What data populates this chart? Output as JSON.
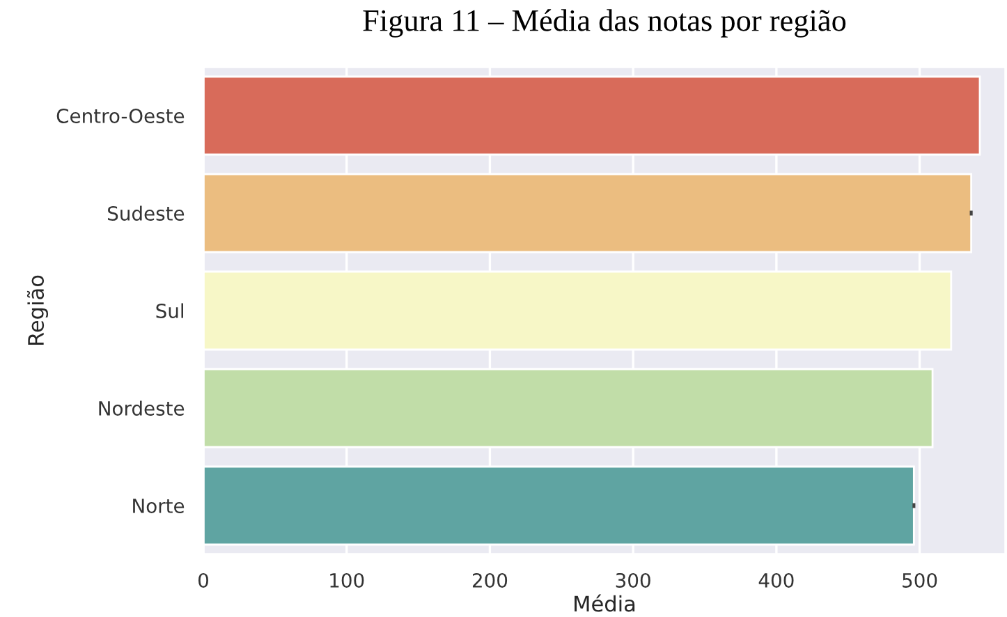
{
  "chart_data": {
    "type": "bar",
    "orientation": "horizontal",
    "title": "Figura 11 – Média das notas por região",
    "xlabel": "Média",
    "ylabel": "Região",
    "categories": [
      "Centro-Oeste",
      "Sudeste",
      "Sul",
      "Nordeste",
      "Norte"
    ],
    "values": [
      542,
      536,
      522,
      509,
      496
    ],
    "errors": [
      null,
      1,
      null,
      null,
      1
    ],
    "colors": [
      "#d86b5a",
      "#ebbd80",
      "#f7f7c7",
      "#c1dda8",
      "#5fa4a2"
    ],
    "xlim": [
      0,
      560
    ],
    "xticks": [
      0,
      100,
      200,
      300,
      400,
      500
    ],
    "grid": "x"
  }
}
